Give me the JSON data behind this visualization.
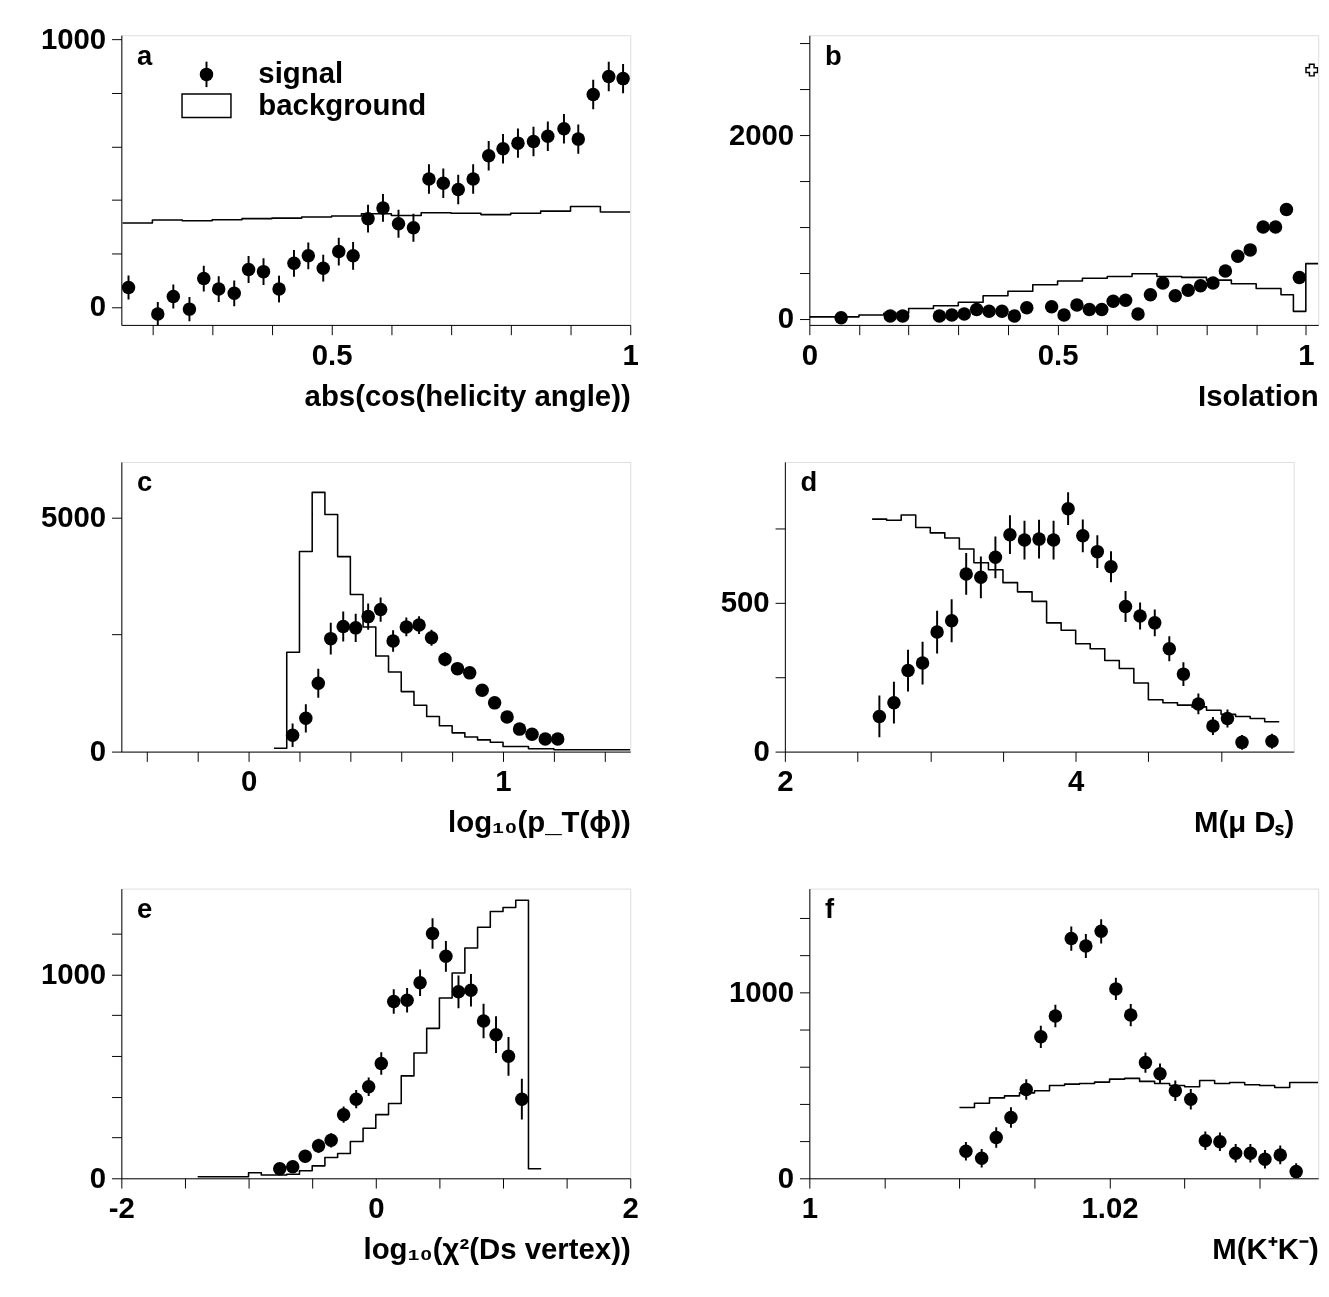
{
  "chart_data": [
    {
      "type": "scatter",
      "title": "a",
      "xlabel": "abs(cos(helicity angle))",
      "legend": "top left",
      "marker": "circle",
      "xlim": [
        0.148,
        1
      ],
      "ylim": [
        -67,
        1015
      ],
      "xticks": [
        {
          "value": 0.2,
          "label": null
        },
        {
          "value": 0.3,
          "label": null
        },
        {
          "value": 0.4,
          "label": null
        },
        0.5,
        {
          "value": 0.6,
          "label": null
        },
        {
          "value": 0.7,
          "label": null
        },
        {
          "value": 0.8,
          "label": null
        },
        {
          "value": 0.9,
          "label": null
        },
        1
      ],
      "yticks": [
        0,
        {
          "value": 200,
          "label": null
        },
        {
          "value": 400,
          "label": null
        },
        {
          "value": 600,
          "label": null
        },
        {
          "value": 800,
          "label": null
        },
        1000
      ],
      "series": [
        {
          "name": "background",
          "type": "histogram",
          "color": "#000000",
          "bins": [
            0.15,
            0.2,
            0.25,
            0.3,
            0.35,
            0.4,
            0.45,
            0.5,
            0.55,
            0.6,
            0.65,
            0.7,
            0.75,
            0.8,
            0.85,
            0.9,
            0.95,
            1.0
          ],
          "values": [
            314,
            325,
            322,
            326,
            330,
            332,
            336,
            340,
            348,
            342,
            352,
            350,
            345,
            350,
            358,
            375,
            355
          ]
        },
        {
          "name": "signal",
          "type": "scatter",
          "color": "#000000",
          "x": [
            0.16,
            0.209,
            0.235,
            0.262,
            0.286,
            0.311,
            0.337,
            0.361,
            0.386,
            0.412,
            0.437,
            0.461,
            0.486,
            0.512,
            0.536,
            0.561,
            0.586,
            0.612,
            0.637,
            0.663,
            0.687,
            0.712,
            0.737,
            0.763,
            0.787,
            0.812,
            0.838,
            0.862,
            0.889,
            0.913,
            0.938,
            0.964,
            0.988
          ],
          "values": [
            73,
            -26,
            39,
            -8,
            106,
            67,
            51,
            140,
            132,
            67,
            163,
            191,
            145,
            207,
            191,
            330,
            370,
            311,
            296,
            478,
            462,
            439,
            478,
            565,
            591,
            612,
            618,
            638,
            666,
            627,
            794,
            861,
            853
          ],
          "errors": [
            45,
            45,
            45,
            45,
            48,
            48,
            48,
            50,
            50,
            50,
            50,
            50,
            50,
            52,
            52,
            52,
            52,
            52,
            52,
            55,
            55,
            55,
            55,
            55,
            55,
            55,
            55,
            55,
            55,
            55,
            55,
            55,
            55
          ]
        }
      ]
    },
    {
      "type": "scatter",
      "title": "b",
      "xlabel": "Isolation",
      "marker": "circle",
      "xlim": [
        0,
        1.025
      ],
      "ylim": [
        -68,
        3090
      ],
      "xticks": [
        0,
        {
          "value": 0.1,
          "label": null
        },
        {
          "value": 0.2,
          "label": null
        },
        {
          "value": 0.3,
          "label": null
        },
        {
          "value": 0.4,
          "label": null
        },
        0.5,
        {
          "value": 0.6,
          "label": null
        },
        {
          "value": 0.7,
          "label": null
        },
        {
          "value": 0.8,
          "label": null
        },
        {
          "value": 0.9,
          "label": null
        },
        1
      ],
      "yticks": [
        0,
        {
          "value": 500,
          "label": null
        },
        {
          "value": 1000,
          "label": null
        },
        {
          "value": 1500,
          "label": null
        },
        2000,
        {
          "value": 2500,
          "label": null
        },
        {
          "value": 3000,
          "label": null
        }
      ],
      "series": [
        {
          "type": "histogram",
          "color": "#000000",
          "bins": [
            0,
            0.1,
            0.15,
            0.2,
            0.25,
            0.3,
            0.35,
            0.4,
            0.45,
            0.5,
            0.55,
            0.6,
            0.65,
            0.7,
            0.75,
            0.8,
            0.85,
            0.9,
            0.95,
            0.975,
            1.0,
            1.025
          ],
          "values": [
            20,
            40,
            60,
            110,
            140,
            180,
            250,
            300,
            370,
            410,
            440,
            460,
            490,
            460,
            450,
            420,
            380,
            330,
            260,
            80,
            600
          ]
        },
        {
          "type": "scatter",
          "color": "#000000",
          "x": [
            0.064,
            0.163,
            0.188,
            0.262,
            0.287,
            0.312,
            0.337,
            0.362,
            0.388,
            0.413,
            0.438,
            0.488,
            0.513,
            0.539,
            0.564,
            0.589,
            0.612,
            0.637,
            0.662,
            0.687,
            0.712,
            0.737,
            0.763,
            0.788,
            0.813,
            0.838,
            0.863,
            0.888,
            0.914,
            0.939,
            0.961,
            0.987
          ],
          "values": [
            10,
            30,
            30,
            30,
            40,
            50,
            100,
            80,
            80,
            30,
            120,
            130,
            40,
            150,
            100,
            100,
            190,
            200,
            50,
            260,
            390,
            250,
            310,
            360,
            390,
            520,
            680,
            750,
            1000,
            1000,
            1190,
            450
          ]
        },
        {
          "type": "scatter",
          "marker": "cross",
          "color": "#000000",
          "x": [
            1.012
          ],
          "values": [
            2710
          ]
        }
      ]
    },
    {
      "type": "scatter",
      "title": "c",
      "xlabel": "log₁₀(p_T(ϕ))",
      "marker": "circle",
      "xlim": [
        -0.5,
        1.5
      ],
      "ylim": [
        0,
        6180
      ],
      "xticks": [
        {
          "value": -0.4,
          "label": null
        },
        {
          "value": -0.2,
          "label": null
        },
        0,
        {
          "value": 0.2,
          "label": null
        },
        {
          "value": 0.4,
          "label": null
        },
        {
          "value": 0.6,
          "label": null
        },
        {
          "value": 0.8,
          "label": null
        },
        1,
        {
          "value": 1.2,
          "label": null
        },
        {
          "value": 1.4,
          "label": null
        }
      ],
      "yticks": [
        0,
        {
          "value": 2500,
          "label": null
        },
        5000
      ],
      "series": [
        {
          "type": "histogram",
          "color": "#000000",
          "bins": [
            0.1,
            0.15,
            0.2,
            0.25,
            0.3,
            0.35,
            0.4,
            0.45,
            0.5,
            0.55,
            0.6,
            0.65,
            0.7,
            0.75,
            0.8,
            0.85,
            0.9,
            0.95,
            1.0,
            1.1,
            1.2,
            1.5
          ],
          "values": [
            70,
            2120,
            4270,
            5530,
            5060,
            4160,
            3350,
            2660,
            2040,
            1700,
            1280,
            990,
            750,
            550,
            400,
            310,
            250,
            200,
            110,
            60,
            40
          ]
        },
        {
          "type": "scatter",
          "color": "#000000",
          "x": [
            0.173,
            0.225,
            0.274,
            0.323,
            0.372,
            0.421,
            0.47,
            0.519,
            0.568,
            0.62,
            0.67,
            0.719,
            0.772,
            0.821,
            0.869,
            0.918,
            0.967,
            1.016,
            1.065,
            1.114,
            1.166,
            1.215
          ],
          "values": [
            350,
            710,
            1460,
            2410,
            2670,
            2640,
            2880,
            3030,
            2360,
            2660,
            2700,
            2430,
            1970,
            1770,
            1680,
            1310,
            1040,
            740,
            480,
            370,
            270,
            270
          ],
          "errors": [
            250,
            300,
            310,
            340,
            320,
            300,
            280,
            260,
            230,
            200,
            190,
            170,
            150,
            130,
            120,
            110,
            100,
            90,
            80,
            70,
            60,
            60
          ]
        }
      ]
    },
    {
      "type": "scatter",
      "title": "d",
      "xlabel": "M(μ Dₛ)",
      "marker": "circle",
      "xlim": [
        2,
        5.5
      ],
      "ylim": [
        0,
        972
      ],
      "xticks": [
        2,
        {
          "value": 2.5,
          "label": null
        },
        {
          "value": 3,
          "label": null
        },
        {
          "value": 3.5,
          "label": null
        },
        4,
        {
          "value": 4.5,
          "label": null
        },
        {
          "value": 5,
          "label": null
        }
      ],
      "yticks": [
        0,
        {
          "value": 250,
          "label": null
        },
        500,
        {
          "value": 750,
          "label": null
        }
      ],
      "series": [
        {
          "type": "histogram",
          "color": "#000000",
          "bins": [
            2.6,
            2.7,
            2.8,
            2.9,
            3.0,
            3.1,
            3.2,
            3.3,
            3.4,
            3.5,
            3.6,
            3.7,
            3.8,
            3.9,
            4.0,
            4.1,
            4.2,
            4.3,
            4.4,
            4.5,
            4.6,
            4.7,
            4.8,
            4.9,
            5.0,
            5.1,
            5.2,
            5.3,
            5.4
          ],
          "values": [
            780,
            776,
            794,
            752,
            734,
            717,
            680,
            634,
            610,
            567,
            536,
            504,
            432,
            407,
            362,
            345,
            306,
            279,
            230,
            174,
            164,
            156,
            150,
            139,
            125,
            118,
            111,
            100
          ]
        },
        {
          "type": "scatter",
          "color": "#000000",
          "x": [
            2.65,
            2.75,
            2.847,
            2.947,
            3.047,
            3.147,
            3.247,
            3.348,
            3.448,
            3.548,
            3.648,
            3.748,
            3.848,
            3.948,
            4.049,
            4.149,
            4.243,
            4.343,
            4.443,
            4.544,
            4.644,
            4.741,
            4.844,
            4.944,
            5.044,
            5.144,
            5.35
          ],
          "values": [
            118,
            164,
            272,
            297,
            401,
            439,
            596,
            585,
            652,
            728,
            710,
            713,
            710,
            815,
            724,
            671,
            620,
            487,
            455,
            432,
            345,
            260,
            160,
            86,
            111,
            31,
            35
          ],
          "errors": [
            70,
            70,
            70,
            72,
            72,
            72,
            70,
            70,
            70,
            65,
            65,
            65,
            65,
            55,
            55,
            55,
            52,
            52,
            45,
            45,
            42,
            40,
            35,
            30,
            30,
            25,
            25
          ]
        }
      ]
    },
    {
      "type": "scatter",
      "title": "e",
      "xlabel": "log₁₀(χ²(Ds vertex))",
      "marker": "circle",
      "xlim": [
        -2,
        2
      ],
      "ylim": [
        0,
        1420
      ],
      "xticks": [
        -2,
        {
          "value": -1.5,
          "label": null
        },
        {
          "value": -1,
          "label": null
        },
        {
          "value": -0.5,
          "label": null
        },
        0,
        {
          "value": 0.5,
          "label": null
        },
        {
          "value": 1,
          "label": null
        },
        {
          "value": 1.5,
          "label": null
        },
        2
      ],
      "yticks": [
        0,
        {
          "value": 200,
          "label": null
        },
        {
          "value": 400,
          "label": null
        },
        {
          "value": 600,
          "label": null
        },
        {
          "value": 800,
          "label": null
        },
        1000,
        {
          "value": 1200,
          "label": null
        }
      ],
      "series": [
        {
          "type": "histogram",
          "color": "#000000",
          "bins": [
            -1.4,
            -1.0,
            -0.9,
            -0.7,
            -0.6,
            -0.5,
            -0.4,
            -0.3,
            -0.2,
            -0.1,
            0.0,
            0.1,
            0.2,
            0.3,
            0.4,
            0.5,
            0.6,
            0.7,
            0.8,
            0.9,
            1.0,
            1.1,
            1.2,
            1.3
          ],
          "values": [
            8,
            27,
            16,
            20,
            37,
            61,
            102,
            122,
            180,
            245,
            312,
            367,
            502,
            614,
            735,
            884,
            1006,
            1129,
            1231,
            1308,
            1327,
            1363,
            47
          ]
        },
        {
          "type": "scatter",
          "color": "#000000",
          "x": [
            -0.755,
            -0.653,
            -0.555,
            -0.45,
            -0.351,
            -0.253,
            -0.154,
            -0.056,
            0.043,
            0.141,
            0.246,
            0.348,
            0.446,
            0.551,
            0.65,
            0.748,
            0.847,
            0.945,
            1.043,
            1.148
          ],
          "values": [
            47,
            57,
            108,
            159,
            186,
            312,
            388,
            449,
            563,
            867,
            873,
            959,
            1200,
            1088,
            914,
            922,
            771,
            704,
            598,
            388
          ],
          "errors": [
            20,
            25,
            30,
            35,
            35,
            40,
            45,
            45,
            55,
            60,
            60,
            65,
            75,
            75,
            80,
            80,
            85,
            90,
            95,
            100
          ]
        }
      ]
    },
    {
      "type": "scatter",
      "title": "f",
      "xlabel": "M(K⁺K⁻)",
      "marker": "circle",
      "xlim": [
        1,
        1.0339
      ],
      "ylim": [
        0,
        1560
      ],
      "xticks": [
        1,
        {
          "value": 1.005,
          "label": null
        },
        {
          "value": 1.01,
          "label": null
        },
        {
          "value": 1.015,
          "label": null
        },
        1.02,
        {
          "value": 1.025,
          "label": null
        },
        {
          "value": 1.03,
          "label": null
        }
      ],
      "yticks": [
        0,
        {
          "value": 200,
          "label": null
        },
        {
          "value": 400,
          "label": null
        },
        {
          "value": 600,
          "label": null
        },
        {
          "value": 800,
          "label": null
        },
        1000,
        {
          "value": 1200,
          "label": null
        },
        {
          "value": 1400,
          "label": null
        }
      ],
      "series": [
        {
          "type": "histogram",
          "color": "#000000",
          "bins": [
            1.01,
            1.011,
            1.012,
            1.013,
            1.014,
            1.015,
            1.016,
            1.017,
            1.018,
            1.019,
            1.02,
            1.021,
            1.022,
            1.023,
            1.024,
            1.025,
            1.026,
            1.027,
            1.028,
            1.029,
            1.03,
            1.031,
            1.032,
            1.0339
          ],
          "values": [
            381,
            404,
            433,
            444,
            460,
            471,
            500,
            507,
            511,
            518,
            534,
            538,
            522,
            511,
            500,
            493,
            527,
            511,
            516,
            504,
            500,
            489,
            516
          ]
        },
        {
          "type": "scatter",
          "color": "#000000",
          "x": [
            1.01043,
            1.01148,
            1.01245,
            1.01343,
            1.01445,
            1.01542,
            1.01639,
            1.01745,
            1.01842,
            1.01944,
            1.02042,
            1.02141,
            1.02239,
            1.02336,
            1.02438,
            1.02541,
            1.02638,
            1.02735,
            1.0284,
            1.02938,
            1.03035,
            1.03137,
            1.03243
          ],
          "values": [
            146,
            108,
            220,
            327,
            478,
            762,
            874,
            1291,
            1251,
            1330,
            1020,
            879,
            623,
            563,
            471,
            426,
            202,
            197,
            135,
            135,
            103,
            126,
            36
          ],
          "errors": [
            50,
            50,
            55,
            55,
            55,
            60,
            60,
            65,
            65,
            65,
            60,
            60,
            55,
            55,
            55,
            55,
            50,
            50,
            50,
            50,
            50,
            50,
            45
          ]
        }
      ]
    }
  ]
}
